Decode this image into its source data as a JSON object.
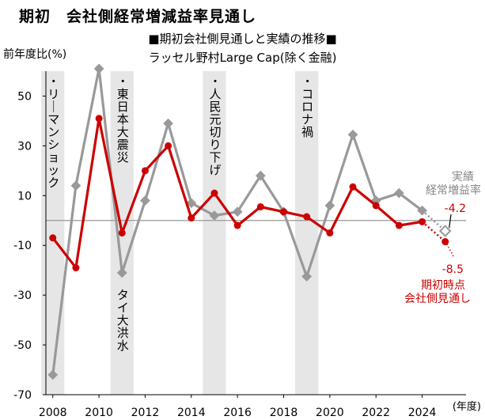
{
  "header": {
    "title": "期初　会社側経常増減益率見通し",
    "subtitle_line1": "■期初会社側見通しと実績の推移■",
    "subtitle_line2": "ラッセル野村Large Cap(除く金融)",
    "y_unit_label": "前年度比(%)",
    "x_unit_label": "(年度)"
  },
  "colors": {
    "actual": "#999999",
    "forecast": "#cc0000",
    "shade": "#e6e6e6",
    "zero_line": "#999999",
    "axis": "#000000"
  },
  "chart_data": {
    "type": "line",
    "title": "期初会社側見通しと実績の推移",
    "ylabel": "前年度比(%)",
    "xlabel": "(年度)",
    "ylim": [
      -70,
      60
    ],
    "xlim": [
      2007.7,
      2025.9
    ],
    "yticks": [
      50,
      30,
      10,
      -10,
      -30,
      -50,
      -70
    ],
    "xticks": [
      2008,
      2010,
      2012,
      2014,
      2016,
      2018,
      2020,
      2022,
      2024
    ],
    "series": [
      {
        "name": "実績 経常増益率",
        "color": "#999999",
        "x": [
          2008,
          2009,
          2010,
          2011,
          2012,
          2013,
          2014,
          2015,
          2016,
          2017,
          2018,
          2019,
          2020,
          2021,
          2022,
          2023,
          2024
        ],
        "y": [
          -62,
          14,
          61,
          -21,
          8,
          39,
          7,
          2,
          3.5,
          18,
          3.5,
          -22.5,
          6,
          34.5,
          8,
          11,
          4
        ]
      },
      {
        "name": "期初時点 会社側見通し",
        "color": "#cc0000",
        "x": [
          2008,
          2009,
          2010,
          2011,
          2012,
          2013,
          2014,
          2015,
          2016,
          2017,
          2018,
          2019,
          2020,
          2021,
          2022,
          2023,
          2024,
          2025
        ],
        "y": [
          -7,
          -19,
          41,
          -5,
          20,
          30,
          1,
          11,
          -2,
          5.5,
          3.5,
          1.5,
          -5,
          13.5,
          6,
          -2,
          -0.5,
          -8.5
        ]
      }
    ],
    "latest_actual_estimate": {
      "x": 2025,
      "y": -4.2,
      "label": "-4.2"
    },
    "latest_forecast_label": "-8.5",
    "annotations": {
      "actual": [
        "実績",
        "経常増益率"
      ],
      "forecast": [
        "期初時点",
        "会社側見通し"
      ]
    },
    "shaded_periods": [
      {
        "x": 2008,
        "label": "・リーマンショック"
      },
      {
        "x": 2011,
        "label": "・東日本大震災"
      },
      {
        "x": 2011,
        "label": "タイ大洪水"
      },
      {
        "x": 2015,
        "label": "・人民元切り下げ"
      },
      {
        "x": 2019,
        "label": "・コロナ禍"
      }
    ],
    "grid": false,
    "legend": "none"
  }
}
